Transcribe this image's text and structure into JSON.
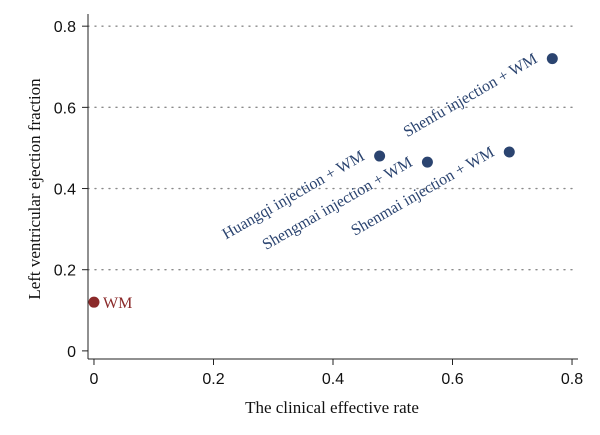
{
  "chart_data": {
    "type": "scatter",
    "xlabel": "The clinical effective rate",
    "ylabel": "Left ventricular ejection fraction",
    "xlim": [
      -0.01,
      0.81
    ],
    "ylim": [
      -0.02,
      0.83
    ],
    "xticks": [
      0,
      0.2,
      0.4,
      0.6,
      0.8
    ],
    "yticks": [
      0,
      0.2,
      0.4,
      0.6,
      0.8
    ],
    "xtick_labels": [
      "0",
      "0.2",
      "0.4",
      "0.6",
      "0.8"
    ],
    "ytick_labels": [
      "0",
      "0.2",
      "0.4",
      "0.6",
      "0.8"
    ],
    "grid": "horizontal dotted",
    "points": [
      {
        "label": "WM",
        "x": 0.0,
        "y": 0.12,
        "color": "#8b2a2a",
        "label_rotation": 0,
        "label_position": "right"
      },
      {
        "label": "Huangqi injection + WM",
        "x": 0.478,
        "y": 0.48,
        "color": "#2b4470",
        "label_rotation": -30,
        "label_position": "lower-left"
      },
      {
        "label": "Shengmai injection + WM",
        "x": 0.558,
        "y": 0.465,
        "color": "#2b4470",
        "label_rotation": -30,
        "label_position": "lower-left"
      },
      {
        "label": "Shenmai injection + WM",
        "x": 0.695,
        "y": 0.49,
        "color": "#2b4470",
        "label_rotation": -30,
        "label_position": "lower-left"
      },
      {
        "label": "Shenfu injection + WM",
        "x": 0.767,
        "y": 0.72,
        "color": "#2b4470",
        "label_rotation": -30,
        "label_position": "lower-left"
      }
    ]
  }
}
